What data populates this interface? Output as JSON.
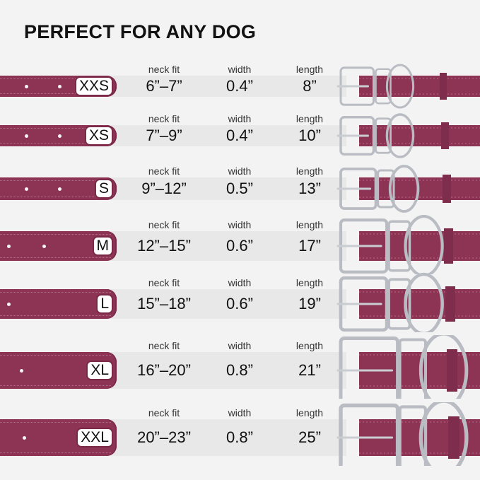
{
  "title": "PERFECT FOR ANY DOG",
  "column_labels": {
    "neck_fit": "neck fit",
    "width": "width",
    "length": "length"
  },
  "colors": {
    "collar": "#8d3455",
    "background": "#f3f3f3",
    "band": "#e8e8e8",
    "metal": "#b9bcc2"
  },
  "sizes": [
    {
      "size": "XXS",
      "neck_fit": "6”–7”",
      "width": "0.4”",
      "length": "8”"
    },
    {
      "size": "XS",
      "neck_fit": "7”–9”",
      "width": "0.4”",
      "length": "10”"
    },
    {
      "size": "S",
      "neck_fit": "9”–12”",
      "width": "0.5”",
      "length": "13”"
    },
    {
      "size": "M",
      "neck_fit": "12”–15”",
      "width": "0.6”",
      "length": "17”"
    },
    {
      "size": "L",
      "neck_fit": "15”–18”",
      "width": "0.6”",
      "length": "19”"
    },
    {
      "size": "XL",
      "neck_fit": "16”–20”",
      "width": "0.8”",
      "length": "21”"
    },
    {
      "size": "XXL",
      "neck_fit": "20”–23”",
      "width": "0.8”",
      "length": "25”"
    }
  ]
}
